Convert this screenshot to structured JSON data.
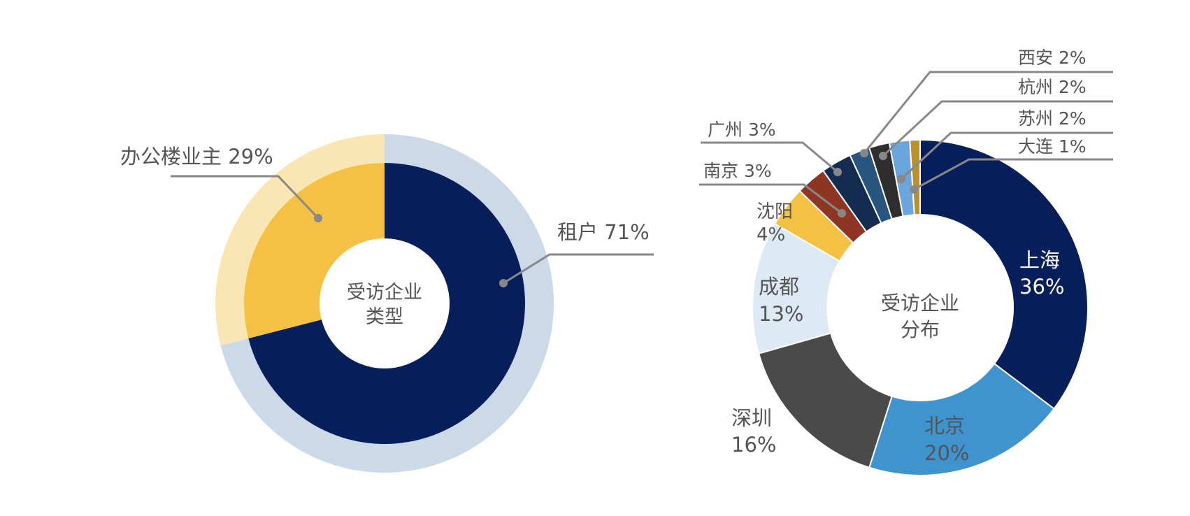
{
  "chart_data": [
    {
      "type": "pie",
      "variant": "donut",
      "title": "",
      "center_label": [
        "受访企业",
        "类型"
      ],
      "slices": [
        {
          "name": "租户",
          "value": 71,
          "label": "租户 71%",
          "color": "#061f5a",
          "outer_color": "#cbd9e8"
        },
        {
          "name": "办公楼业主",
          "value": 29,
          "label": "办公楼业主 29%",
          "color": "#f4c145",
          "outer_color": "#fae6b2"
        }
      ],
      "legend": "none"
    },
    {
      "type": "pie",
      "variant": "donut",
      "title": "",
      "center_label": [
        "受访企业",
        "分布"
      ],
      "slices": [
        {
          "name": "上海",
          "value": 36,
          "label": "36%",
          "color": "#061f5a",
          "text_color": "#ffffff"
        },
        {
          "name": "北京",
          "value": 20,
          "label": "20%",
          "color": "#3f93cf",
          "text_color": "#555555"
        },
        {
          "name": "深圳",
          "value": 16,
          "label": "16%",
          "color": "#4a4a4a",
          "text_color": "#555555"
        },
        {
          "name": "成都",
          "value": 13,
          "label": "13%",
          "color": "#dde9f4",
          "text_color": "#555555"
        },
        {
          "name": "沈阳",
          "value": 4,
          "label": "4%",
          "color": "#f4c145",
          "text_color": "#555555"
        },
        {
          "name": "南京",
          "value": 3,
          "label": "南京 3%",
          "color": "#8e3524",
          "text_color": "#555555"
        },
        {
          "name": "广州",
          "value": 3,
          "label": "广州 3%",
          "color": "#132c4f",
          "text_color": "#555555"
        },
        {
          "name": "西安",
          "value": 2,
          "label": "西安 2%",
          "color": "#27557e",
          "text_color": "#555555"
        },
        {
          "name": "杭州",
          "value": 2,
          "label": "杭州 2%",
          "color": "#2e2e2e",
          "text_color": "#555555"
        },
        {
          "name": "苏州",
          "value": 2,
          "label": "苏州 2%",
          "color": "#6aa5dc",
          "text_color": "#555555"
        },
        {
          "name": "大连",
          "value": 1,
          "label": "大连 1%",
          "color": "#b9912a",
          "text_color": "#555555"
        }
      ],
      "legend": "none"
    }
  ]
}
